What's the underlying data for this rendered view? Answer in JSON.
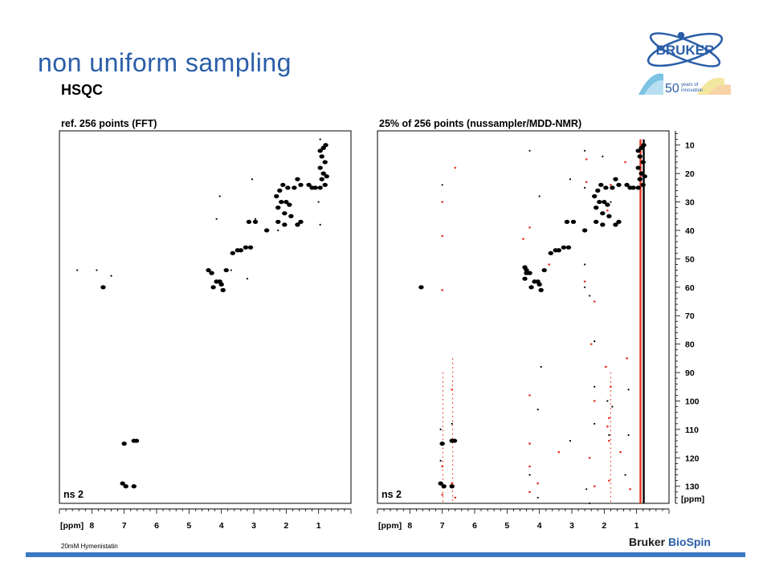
{
  "title": "non uniform sampling",
  "subtitle": "HSQC",
  "logo": {
    "brand": "BRUKER",
    "number": "50",
    "tagline_1": "years of",
    "tagline_2": "innovation"
  },
  "footer": {
    "note": "20mM Hymenistatin",
    "brand_1": "Bruker",
    "brand_2": "BioSpin"
  },
  "colors": {
    "accent": "#2a5ea8",
    "bar": "#3a78c2",
    "peak": "#000000",
    "artifact": "#e8321e"
  },
  "chart_data": [
    {
      "type": "scatter",
      "title": "ref. 256 points (FFT)",
      "corner_label": "ns 2",
      "xlabel": "[ppm]",
      "xlim": [
        9.0,
        0.0
      ],
      "ylim": [
        5,
        136
      ],
      "x_ticks": [
        8,
        7,
        6,
        5,
        4,
        3,
        2,
        1
      ],
      "y_ticks": [],
      "series": [
        {
          "role": "peaks",
          "points": [
            [
              0.78,
              10
            ],
            [
              0.85,
              11
            ],
            [
              0.95,
              12
            ],
            [
              0.9,
              14
            ],
            [
              0.8,
              16
            ],
            [
              0.95,
              18
            ],
            [
              0.85,
              20
            ],
            [
              0.75,
              21
            ],
            [
              0.9,
              22
            ],
            [
              0.8,
              24
            ],
            [
              0.95,
              25
            ],
            [
              1.3,
              24
            ],
            [
              1.2,
              25
            ],
            [
              1.55,
              24
            ],
            [
              1.75,
              25
            ],
            [
              1.65,
              22
            ],
            [
              1.95,
              25
            ],
            [
              2.1,
              24
            ],
            [
              2.2,
              26
            ],
            [
              1.1,
              25
            ],
            [
              2.3,
              28
            ],
            [
              2.15,
              30
            ],
            [
              2.0,
              30
            ],
            [
              1.9,
              31
            ],
            [
              2.25,
              32
            ],
            [
              2.05,
              34
            ],
            [
              1.85,
              35
            ],
            [
              1.55,
              37
            ],
            [
              1.65,
              38
            ],
            [
              2.05,
              38
            ],
            [
              2.25,
              37
            ],
            [
              3.15,
              37
            ],
            [
              2.95,
              37
            ],
            [
              2.6,
              40
            ],
            [
              3.1,
              46
            ],
            [
              3.25,
              46
            ],
            [
              3.5,
              47
            ],
            [
              3.65,
              48
            ],
            [
              3.4,
              47
            ],
            [
              3.85,
              54
            ],
            [
              4.4,
              54
            ],
            [
              4.3,
              55
            ],
            [
              4.15,
              58
            ],
            [
              4.05,
              58
            ],
            [
              4.25,
              60
            ],
            [
              4.0,
              59
            ],
            [
              3.95,
              61
            ],
            [
              7.65,
              60
            ],
            [
              7.0,
              115
            ],
            [
              6.7,
              114
            ],
            [
              6.62,
              114
            ],
            [
              7.05,
              129
            ],
            [
              6.95,
              130
            ],
            [
              6.7,
              130
            ]
          ]
        },
        {
          "role": "minor",
          "points": [
            [
              0.95,
              8
            ],
            [
              1.0,
              30
            ],
            [
              0.95,
              38
            ],
            [
              2.95,
              36
            ],
            [
              3.05,
              22
            ],
            [
              4.05,
              28
            ],
            [
              4.15,
              36
            ],
            [
              8.45,
              54
            ],
            [
              7.85,
              54
            ],
            [
              7.4,
              56
            ],
            [
              3.7,
              54
            ],
            [
              3.2,
              57
            ],
            [
              2.25,
              40
            ]
          ]
        }
      ]
    },
    {
      "type": "scatter",
      "title": "25% of 256 points (nussampler/MDD-NMR)",
      "corner_label": "ns 2",
      "xlabel": "[ppm]",
      "ylabel": "[ppm]",
      "xlim": [
        9.0,
        0.0
      ],
      "ylim": [
        5,
        136
      ],
      "x_ticks": [
        8,
        7,
        6,
        5,
        4,
        3,
        2,
        1
      ],
      "y_ticks": [
        10,
        20,
        30,
        40,
        50,
        60,
        70,
        80,
        90,
        100,
        110,
        120,
        130
      ],
      "series": [
        {
          "role": "peaks",
          "points": [
            [
              0.78,
              10
            ],
            [
              0.85,
              11
            ],
            [
              0.95,
              12
            ],
            [
              0.9,
              14
            ],
            [
              0.8,
              16
            ],
            [
              0.95,
              18
            ],
            [
              0.85,
              20
            ],
            [
              0.75,
              21
            ],
            [
              0.9,
              22
            ],
            [
              0.8,
              24
            ],
            [
              0.95,
              25
            ],
            [
              1.3,
              24
            ],
            [
              1.2,
              25
            ],
            [
              1.55,
              24
            ],
            [
              1.75,
              25
            ],
            [
              1.65,
              22
            ],
            [
              1.95,
              25
            ],
            [
              2.1,
              24
            ],
            [
              2.2,
              26
            ],
            [
              1.1,
              25
            ],
            [
              2.3,
              28
            ],
            [
              2.15,
              30
            ],
            [
              2.0,
              30
            ],
            [
              1.9,
              31
            ],
            [
              2.25,
              32
            ],
            [
              2.05,
              34
            ],
            [
              1.85,
              35
            ],
            [
              1.55,
              37
            ],
            [
              1.65,
              38
            ],
            [
              2.05,
              38
            ],
            [
              2.25,
              37
            ],
            [
              3.15,
              37
            ],
            [
              2.95,
              37
            ],
            [
              2.6,
              40
            ],
            [
              3.1,
              46
            ],
            [
              3.25,
              46
            ],
            [
              3.5,
              47
            ],
            [
              3.65,
              48
            ],
            [
              3.4,
              47
            ],
            [
              3.85,
              54
            ],
            [
              4.4,
              54
            ],
            [
              4.3,
              55
            ],
            [
              4.15,
              58
            ],
            [
              4.05,
              58
            ],
            [
              4.25,
              60
            ],
            [
              4.0,
              59
            ],
            [
              3.95,
              61
            ],
            [
              7.65,
              60
            ],
            [
              7.0,
              115
            ],
            [
              6.7,
              114
            ],
            [
              6.62,
              114
            ],
            [
              7.05,
              129
            ],
            [
              6.95,
              130
            ],
            [
              6.7,
              130
            ],
            [
              4.45,
              53
            ],
            [
              4.4,
              55
            ],
            [
              4.45,
              57
            ]
          ]
        },
        {
          "role": "minor",
          "points": [
            [
              4.3,
              12
            ],
            [
              2.6,
              12
            ],
            [
              2.05,
              14
            ],
            [
              7.0,
              24
            ],
            [
              3.05,
              22
            ],
            [
              4.0,
              28
            ],
            [
              2.6,
              25
            ],
            [
              1.8,
              30
            ],
            [
              2.6,
              52
            ],
            [
              2.6,
              60
            ],
            [
              2.45,
              63
            ],
            [
              2.3,
              79
            ],
            [
              3.95,
              88
            ],
            [
              2.3,
              95
            ],
            [
              1.25,
              96
            ],
            [
              1.9,
              100
            ],
            [
              1.75,
              102
            ],
            [
              4.05,
              103
            ],
            [
              2.3,
              108
            ],
            [
              1.85,
              112
            ],
            [
              1.25,
              112
            ],
            [
              7.05,
              110
            ],
            [
              6.7,
              108
            ],
            [
              7.05,
              121
            ],
            [
              3.05,
              114
            ],
            [
              1.35,
              126
            ],
            [
              4.3,
              126
            ],
            [
              2.55,
              131
            ],
            [
              4.05,
              134
            ],
            [
              2.45,
              136
            ]
          ]
        },
        {
          "role": "artifacts",
          "points": [
            [
              2.55,
              15
            ],
            [
              1.35,
              16
            ],
            [
              6.6,
              18
            ],
            [
              2.55,
              23
            ],
            [
              7.0,
              30
            ],
            [
              4.3,
              39
            ],
            [
              4.5,
              43
            ],
            [
              7.0,
              42
            ],
            [
              2.6,
              58
            ],
            [
              7.0,
              61
            ],
            [
              3.7,
              52
            ],
            [
              2.3,
              65
            ],
            [
              2.4,
              80
            ],
            [
              1.3,
              85
            ],
            [
              1.95,
              88
            ],
            [
              1.8,
              95
            ],
            [
              6.7,
              96
            ],
            [
              4.3,
              98
            ],
            [
              2.3,
              100
            ],
            [
              1.85,
              106
            ],
            [
              1.9,
              109
            ],
            [
              1.85,
              114
            ],
            [
              4.3,
              115
            ],
            [
              1.5,
              118
            ],
            [
              3.4,
              118
            ],
            [
              2.45,
              120
            ],
            [
              7.0,
              123
            ],
            [
              4.3,
              123
            ],
            [
              6.7,
              129
            ],
            [
              4.05,
              129
            ],
            [
              2.3,
              130
            ],
            [
              1.85,
              128
            ],
            [
              1.2,
              131
            ],
            [
              7.0,
              133
            ],
            [
              4.3,
              132
            ],
            [
              6.6,
              134
            ],
            [
              1.8,
              24
            ],
            [
              1.9,
              33
            ]
          ]
        }
      ],
      "vertical_streaks": [
        {
          "x": 0.88,
          "color": "artifact",
          "y_range": [
            8,
            136
          ]
        },
        {
          "x": 0.78,
          "color": "peak",
          "y_range": [
            8,
            136
          ]
        },
        {
          "x": 6.98,
          "color": "artifact",
          "y_range": [
            90,
            136
          ]
        },
        {
          "x": 6.68,
          "color": "artifact",
          "y_range": [
            85,
            136
          ]
        },
        {
          "x": 1.8,
          "color": "artifact",
          "y_range": [
            90,
            136
          ]
        }
      ]
    }
  ]
}
